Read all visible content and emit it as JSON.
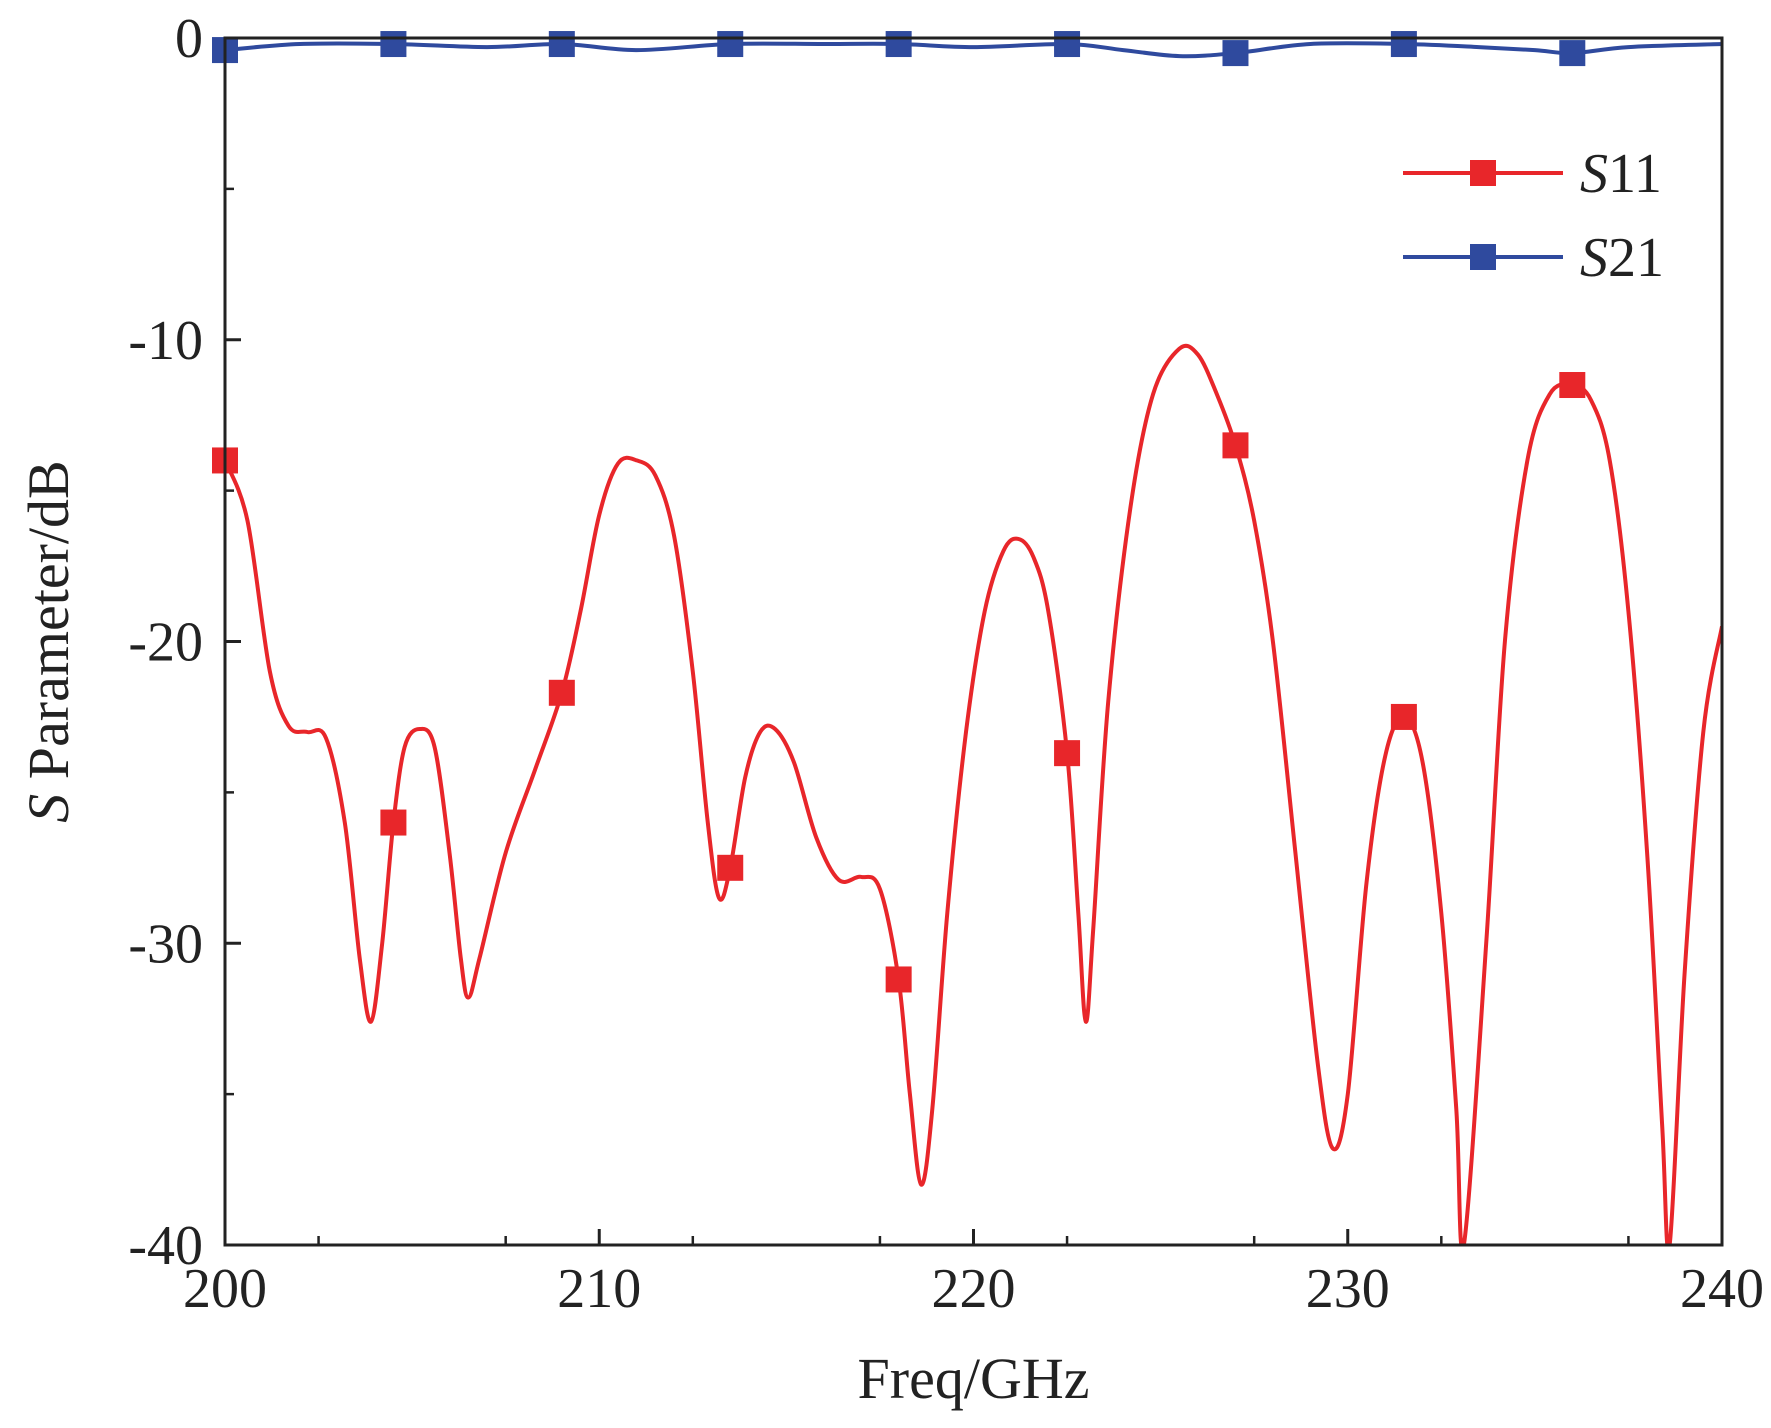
{
  "chart_data": {
    "type": "line",
    "title": "",
    "xlabel": "Freq/GHz",
    "ylabel": {
      "italic": "S",
      "rest": " Parameter/dB"
    },
    "xlim": [
      200,
      240
    ],
    "ylim": [
      -40,
      0
    ],
    "x_ticks": [
      200,
      210,
      220,
      230,
      240
    ],
    "x_tick_labels": [
      "200",
      "210",
      "220",
      "230",
      "240"
    ],
    "y_ticks": [
      0,
      -10,
      -20,
      -30,
      -40
    ],
    "y_tick_labels": [
      "0",
      "-10",
      "-20",
      "-30",
      "-40"
    ],
    "grid": false,
    "legend_position": "top-right",
    "series": [
      {
        "name": "S11",
        "legend": {
          "italic": "S",
          "rest": "11"
        },
        "color": "#e8262a",
        "marker": "square",
        "points": [
          [
            200.0,
            -14.0
          ],
          [
            200.6,
            -16.0
          ],
          [
            201.2,
            -21.0
          ],
          [
            201.7,
            -22.8
          ],
          [
            202.2,
            -23.0
          ],
          [
            202.7,
            -23.2
          ],
          [
            203.2,
            -26.0
          ],
          [
            203.6,
            -30.5
          ],
          [
            203.9,
            -32.6
          ],
          [
            204.2,
            -30.0
          ],
          [
            204.5,
            -26.0
          ],
          [
            204.8,
            -23.5
          ],
          [
            205.2,
            -22.9
          ],
          [
            205.6,
            -23.5
          ],
          [
            206.0,
            -27.0
          ],
          [
            206.3,
            -30.5
          ],
          [
            206.5,
            -31.8
          ],
          [
            206.8,
            -30.5
          ],
          [
            207.5,
            -27.0
          ],
          [
            208.3,
            -24.2
          ],
          [
            209.0,
            -21.7
          ],
          [
            209.5,
            -19.0
          ],
          [
            210.0,
            -15.8
          ],
          [
            210.5,
            -14.1
          ],
          [
            211.0,
            -14.0
          ],
          [
            211.5,
            -14.5
          ],
          [
            212.0,
            -16.5
          ],
          [
            212.5,
            -21.0
          ],
          [
            212.9,
            -26.0
          ],
          [
            213.2,
            -28.5
          ],
          [
            213.5,
            -27.5
          ],
          [
            213.9,
            -24.5
          ],
          [
            214.3,
            -23.0
          ],
          [
            214.7,
            -22.9
          ],
          [
            215.2,
            -24.0
          ],
          [
            215.8,
            -26.5
          ],
          [
            216.4,
            -27.9
          ],
          [
            217.0,
            -27.8
          ],
          [
            217.5,
            -28.2
          ],
          [
            218.0,
            -31.2
          ],
          [
            218.3,
            -35.0
          ],
          [
            218.6,
            -38.0
          ],
          [
            218.9,
            -35.5
          ],
          [
            219.3,
            -29.0
          ],
          [
            219.8,
            -23.0
          ],
          [
            220.3,
            -19.0
          ],
          [
            220.8,
            -17.0
          ],
          [
            221.2,
            -16.6
          ],
          [
            221.6,
            -17.2
          ],
          [
            222.0,
            -19.0
          ],
          [
            222.5,
            -23.7
          ],
          [
            222.8,
            -29.0
          ],
          [
            223.0,
            -32.6
          ],
          [
            223.2,
            -29.5
          ],
          [
            223.6,
            -22.0
          ],
          [
            224.2,
            -15.5
          ],
          [
            224.8,
            -11.8
          ],
          [
            225.5,
            -10.3
          ],
          [
            226.0,
            -10.5
          ],
          [
            226.5,
            -11.8
          ],
          [
            227.0,
            -13.5
          ],
          [
            227.5,
            -16.0
          ],
          [
            228.0,
            -20.0
          ],
          [
            228.6,
            -27.0
          ],
          [
            229.2,
            -34.0
          ],
          [
            229.6,
            -36.8
          ],
          [
            230.0,
            -35.0
          ],
          [
            230.5,
            -28.0
          ],
          [
            231.0,
            -23.8
          ],
          [
            231.5,
            -22.5
          ],
          [
            232.0,
            -24.0
          ],
          [
            232.5,
            -29.0
          ],
          [
            232.9,
            -35.5
          ],
          [
            233.1,
            -40.0
          ],
          [
            233.7,
            -30.0
          ],
          [
            234.2,
            -20.0
          ],
          [
            234.8,
            -14.0
          ],
          [
            235.4,
            -11.8
          ],
          [
            236.0,
            -11.5
          ],
          [
            236.5,
            -12.0
          ],
          [
            237.0,
            -14.0
          ],
          [
            237.5,
            -19.0
          ],
          [
            238.0,
            -27.0
          ],
          [
            238.4,
            -36.0
          ],
          [
            238.6,
            -40.0
          ],
          [
            239.0,
            -31.0
          ],
          [
            239.5,
            -23.0
          ],
          [
            240.0,
            -19.5
          ]
        ],
        "markers_x": [
          200.0,
          204.5,
          209.0,
          213.5,
          218.0,
          222.5,
          227.0,
          231.5,
          236.0
        ]
      },
      {
        "name": "S21",
        "legend": {
          "italic": "S",
          "rest": "21"
        },
        "color": "#2f4a9e",
        "marker": "square",
        "points": [
          [
            200.0,
            -0.4
          ],
          [
            202.0,
            -0.2
          ],
          [
            204.5,
            -0.2
          ],
          [
            207.0,
            -0.3
          ],
          [
            209.0,
            -0.2
          ],
          [
            211.0,
            -0.4
          ],
          [
            213.5,
            -0.2
          ],
          [
            216.0,
            -0.2
          ],
          [
            218.0,
            -0.2
          ],
          [
            220.0,
            -0.3
          ],
          [
            222.5,
            -0.2
          ],
          [
            224.0,
            -0.4
          ],
          [
            225.5,
            -0.6
          ],
          [
            227.0,
            -0.5
          ],
          [
            229.0,
            -0.2
          ],
          [
            231.5,
            -0.2
          ],
          [
            233.5,
            -0.3
          ],
          [
            235.0,
            -0.4
          ],
          [
            236.0,
            -0.5
          ],
          [
            237.5,
            -0.3
          ],
          [
            240.0,
            -0.2
          ]
        ],
        "markers_x": [
          200.0,
          204.5,
          209.0,
          213.5,
          218.0,
          222.5,
          227.0,
          231.5,
          236.0
        ]
      }
    ]
  }
}
